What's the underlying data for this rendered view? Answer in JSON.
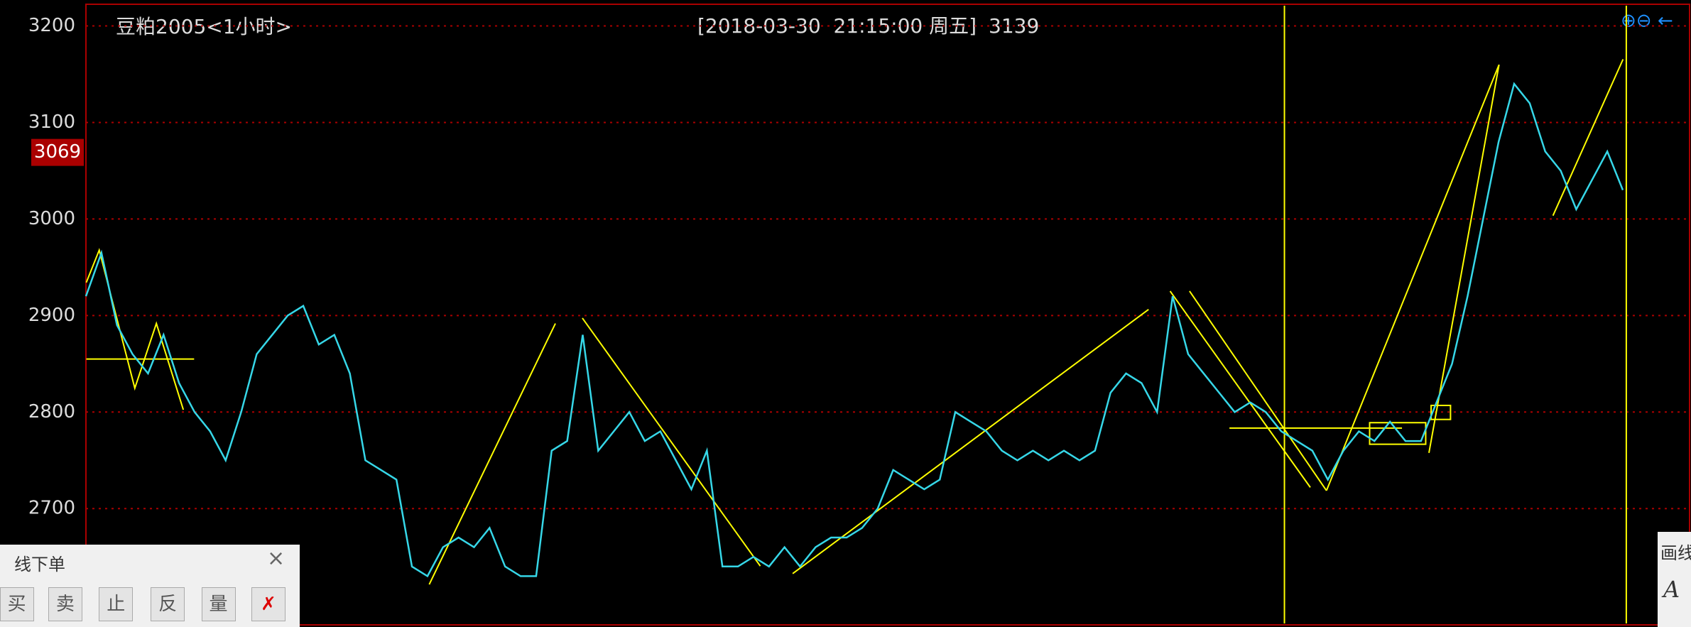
{
  "chart_data": {
    "type": "line",
    "title": "豆粕2005<1小时>",
    "subtitle": "[2018-03-30  21:15:00 周五]",
    "last_value": "3139",
    "current_price": 3069,
    "color": "#36d7e8",
    "ylim": [
      2581,
      3221
    ],
    "yticks": [
      2700,
      2800,
      2900,
      3000,
      3100,
      3200
    ],
    "grid": true,
    "values": [
      2920,
      2965,
      2890,
      2860,
      2840,
      2880,
      2830,
      2800,
      2780,
      2750,
      2800,
      2860,
      2880,
      2900,
      2910,
      2870,
      2880,
      2840,
      2750,
      2740,
      2730,
      2640,
      2630,
      2660,
      2670,
      2660,
      2680,
      2640,
      2630,
      2630,
      2760,
      2770,
      2880,
      2760,
      2780,
      2800,
      2770,
      2780,
      2750,
      2720,
      2760,
      2640,
      2640,
      2650,
      2640,
      2660,
      2640,
      2660,
      2670,
      2670,
      2680,
      2700,
      2740,
      2730,
      2720,
      2730,
      2800,
      2790,
      2780,
      2760,
      2750,
      2760,
      2750,
      2760,
      2750,
      2760,
      2820,
      2840,
      2830,
      2800,
      2920,
      2860,
      2840,
      2820,
      2800,
      2810,
      2800,
      2780,
      2770,
      2760,
      2730,
      2760,
      2780,
      2770,
      2790,
      2770,
      2770,
      2810,
      2850,
      2920,
      3000,
      3080,
      3140,
      3120,
      3070,
      3050,
      3010,
      3040,
      3070,
      3030
    ]
  },
  "order_panel": {
    "title": "线下单",
    "buttons": [
      "买",
      "卖",
      "止",
      "反",
      "量"
    ]
  },
  "draw_panel": {
    "title": "画线",
    "tool": "A"
  }
}
